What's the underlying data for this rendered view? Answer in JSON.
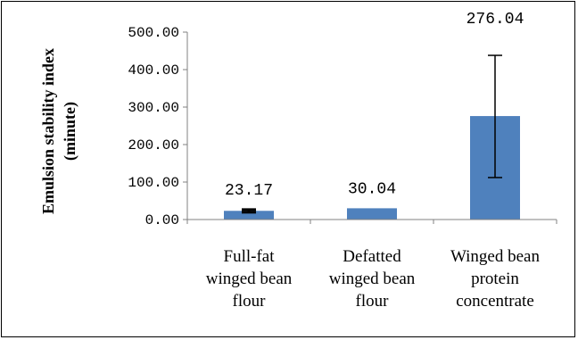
{
  "chart_data": {
    "type": "bar",
    "title": "",
    "xlabel": "",
    "ylabel": "Emulsion stability index (minute)",
    "ylabel_lines": [
      "Emulsion stability index",
      "(minute)"
    ],
    "categories": [
      "Full-fat winged bean flour",
      "Defatted winged bean flour",
      "Winged bean protein concentrate"
    ],
    "category_lines": [
      [
        "Full-fat",
        "winged bean",
        "flour"
      ],
      [
        "Defatted",
        "winged bean",
        "flour"
      ],
      [
        "Winged bean",
        "protein",
        "concentrate"
      ]
    ],
    "values": [
      23.17,
      30.04,
      276.04
    ],
    "data_labels": [
      "23.17",
      "30.04",
      "276.04"
    ],
    "error_bars": [
      {
        "low": 19.5,
        "high": 26.5
      },
      null,
      {
        "low": 112,
        "high": 438
      }
    ],
    "ylim": [
      0,
      500
    ],
    "yticks": [
      0,
      100,
      200,
      300,
      400,
      500
    ],
    "ytick_labels": [
      "0.00",
      "100.00",
      "200.00",
      "300.00",
      "400.00",
      "500.00"
    ],
    "grid": false,
    "legend": "none",
    "colors": {
      "bar": "#4F81BD",
      "error_bar": "#000000",
      "axis": "#808080",
      "text": "#000000"
    }
  }
}
